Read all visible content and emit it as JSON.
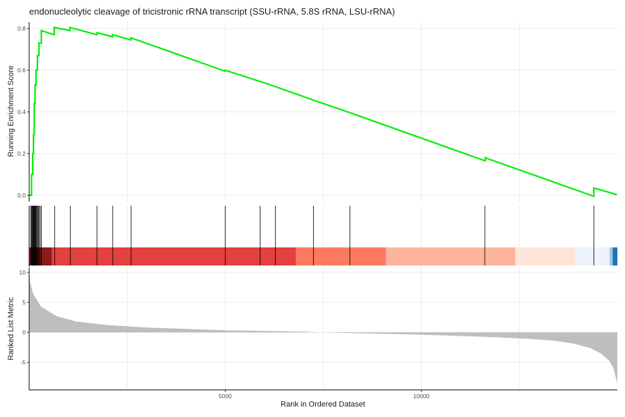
{
  "chart_data": {
    "type": "line",
    "title": "endonucleolytic cleavage of tricistronic rRNA transcript (SSU-rRNA, 5.8S rRNA, LSU-rRNA)",
    "xlabel": "Rank in Ordered Dataset",
    "xlim": [
      0,
      15000
    ],
    "x_ticks": [
      {
        "value": 5000,
        "label": "5000"
      },
      {
        "value": 10000,
        "label": "10000"
      }
    ],
    "grid": true,
    "panels": {
      "running_score": {
        "ylabel": "Running Enrichment Score",
        "ylim": [
          -0.03,
          0.83
        ],
        "y_ticks": [
          {
            "value": 0.0,
            "label": "0.0"
          },
          {
            "value": 0.2,
            "label": "0.2"
          },
          {
            "value": 0.4,
            "label": "0.4"
          },
          {
            "value": 0.6,
            "label": "0.6"
          },
          {
            "value": 0.8,
            "label": "0.8"
          }
        ],
        "line_color": "#00ee00",
        "points": [
          [
            0,
            0
          ],
          [
            60,
            0
          ],
          [
            60,
            0.1
          ],
          [
            90,
            0.1
          ],
          [
            90,
            0.2
          ],
          [
            110,
            0.2
          ],
          [
            110,
            0.29
          ],
          [
            130,
            0.29
          ],
          [
            130,
            0.44
          ],
          [
            150,
            0.44
          ],
          [
            150,
            0.53
          ],
          [
            175,
            0.53
          ],
          [
            175,
            0.6
          ],
          [
            210,
            0.6
          ],
          [
            210,
            0.67
          ],
          [
            250,
            0.67
          ],
          [
            250,
            0.73
          ],
          [
            310,
            0.73
          ],
          [
            310,
            0.79
          ],
          [
            640,
            0.77
          ],
          [
            640,
            0.805
          ],
          [
            1040,
            0.79
          ],
          [
            1040,
            0.805
          ],
          [
            1730,
            0.77
          ],
          [
            1730,
            0.78
          ],
          [
            2130,
            0.76
          ],
          [
            2130,
            0.77
          ],
          [
            2600,
            0.745
          ],
          [
            2600,
            0.755
          ],
          [
            5000,
            0.595
          ],
          [
            5000,
            0.6
          ],
          [
            5900,
            0.545
          ],
          [
            6300,
            0.52
          ],
          [
            7270,
            0.455
          ],
          [
            8200,
            0.395
          ],
          [
            11630,
            0.165
          ],
          [
            11630,
            0.18
          ],
          [
            14400,
            -0.005
          ],
          [
            14400,
            0.035
          ],
          [
            14990,
            0.003
          ]
        ]
      },
      "hits": {
        "positions": [
          40,
          60,
          75,
          90,
          100,
          110,
          120,
          130,
          140,
          150,
          160,
          175,
          190,
          210,
          230,
          250,
          280,
          310,
          650,
          1050,
          1730,
          2130,
          2600,
          5000,
          5890,
          6280,
          7250,
          8180,
          11620,
          14400
        ],
        "color_bar": [
          {
            "from": 0,
            "to": 580,
            "color": "#8b1a1a"
          },
          {
            "from": 580,
            "to": 6800,
            "color": "#e34040"
          },
          {
            "from": 6800,
            "to": 9100,
            "color": "#fb7a60"
          },
          {
            "from": 9100,
            "to": 12400,
            "color": "#fcb59c"
          },
          {
            "from": 12400,
            "to": 13930,
            "color": "#fee4d9"
          },
          {
            "from": 13930,
            "to": 14800,
            "color": "#eef3fb"
          },
          {
            "from": 14800,
            "to": 14880,
            "color": "#9ecae1"
          },
          {
            "from": 14880,
            "to": 15000,
            "color": "#2171b5"
          }
        ]
      },
      "ranked_metric": {
        "ylabel": "Ranked List Metric",
        "ylim": [
          -9.6,
          10.8
        ],
        "y_ticks": [
          {
            "value": -5,
            "label": "-5"
          },
          {
            "value": 0,
            "label": "0"
          },
          {
            "value": 5,
            "label": "5"
          },
          {
            "value": 10,
            "label": "10"
          }
        ],
        "fill_color": "#bebebe",
        "points": [
          [
            0,
            10
          ],
          [
            20,
            8.5
          ],
          [
            100,
            6.5
          ],
          [
            300,
            4.3
          ],
          [
            700,
            2.7
          ],
          [
            1200,
            1.8
          ],
          [
            2000,
            1.2
          ],
          [
            3000,
            0.8
          ],
          [
            5000,
            0.35
          ],
          [
            7000,
            0.12
          ],
          [
            7400,
            0
          ],
          [
            9000,
            -0.25
          ],
          [
            10000,
            -0.4
          ],
          [
            11000,
            -0.6
          ],
          [
            12000,
            -0.85
          ],
          [
            12800,
            -1.1
          ],
          [
            13400,
            -1.4
          ],
          [
            13900,
            -1.9
          ],
          [
            14300,
            -2.6
          ],
          [
            14600,
            -3.6
          ],
          [
            14800,
            -4.8
          ],
          [
            14900,
            -6
          ],
          [
            14960,
            -7.5
          ],
          [
            15000,
            -8.5
          ]
        ]
      }
    }
  }
}
